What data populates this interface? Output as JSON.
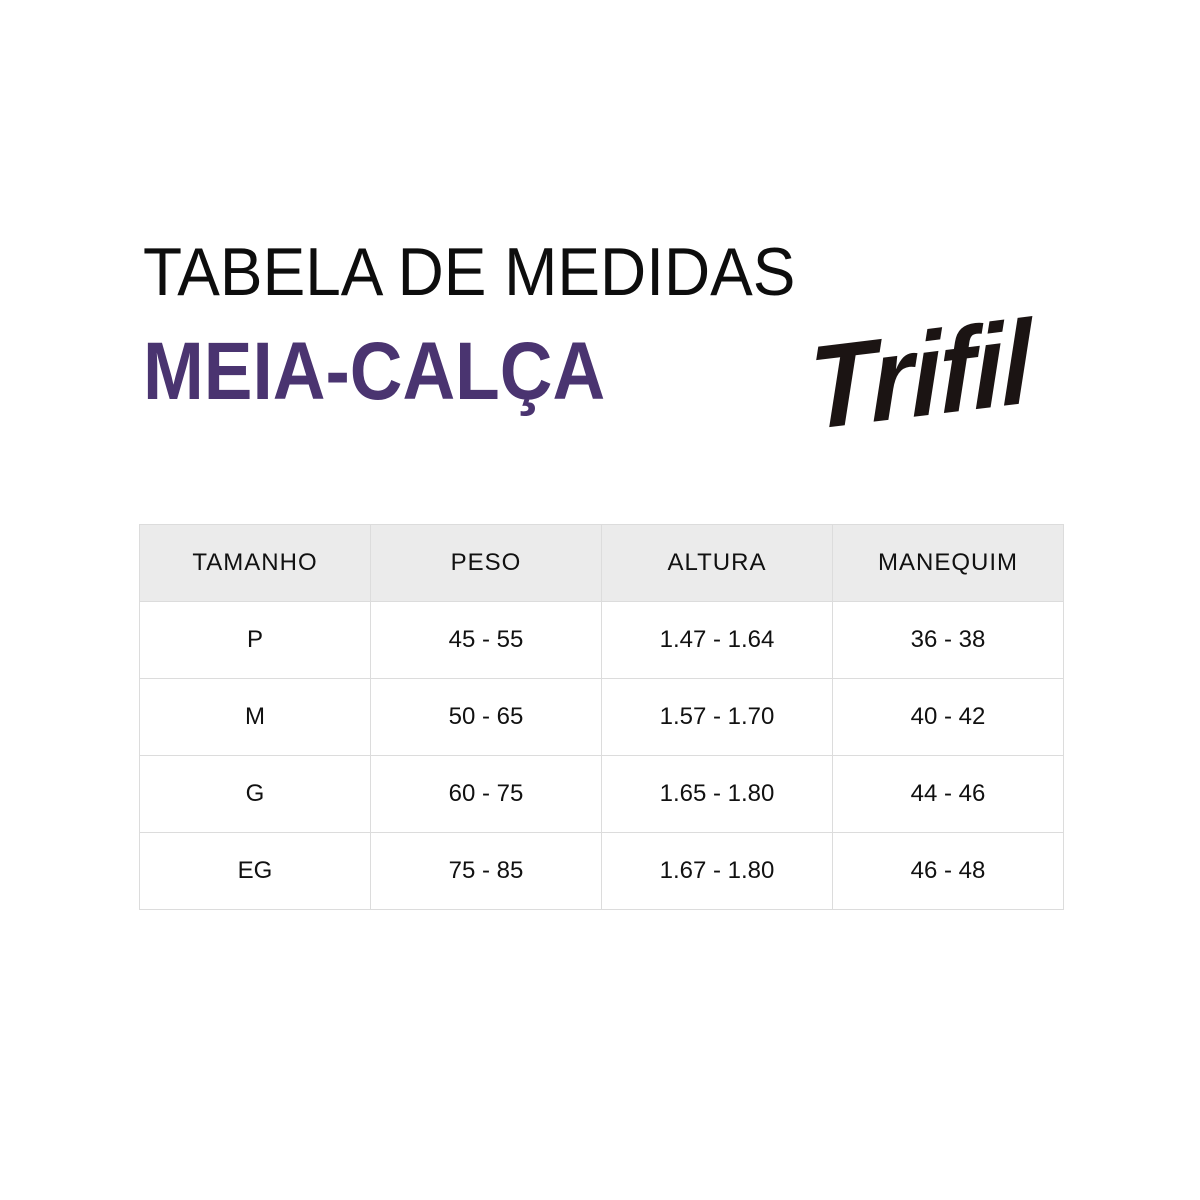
{
  "header": {
    "title": "TABELA DE MEDIDAS",
    "subtitle": "MEIA-CALÇA",
    "brand_logo": "Trifil"
  },
  "colors": {
    "subtitle": "#4a3470",
    "header_bg": "#ebebeb",
    "logo": "#1b1413"
  },
  "table": {
    "columns": [
      "TAMANHO",
      "PESO",
      "ALTURA",
      "MANEQUIM"
    ],
    "rows": [
      [
        "P",
        "45 - 55",
        "1.47 - 1.64",
        "36 - 38"
      ],
      [
        "M",
        "50 - 65",
        "1.57 - 1.70",
        "40 - 42"
      ],
      [
        "G",
        "60 - 75",
        "1.65 - 1.80",
        "44 - 46"
      ],
      [
        "EG",
        "75 - 85",
        "1.67 - 1.80",
        "46 - 48"
      ]
    ]
  }
}
